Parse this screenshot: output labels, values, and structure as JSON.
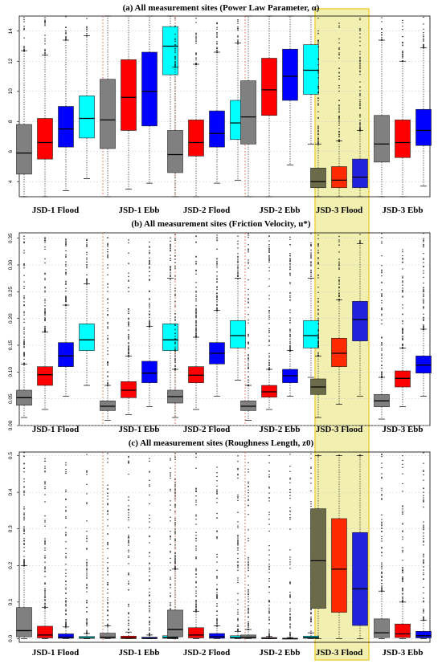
{
  "chart_data": [
    {
      "type": "box",
      "title": "(a) All measurement sites (Power Law Parameter, α)",
      "ylim": [
        3,
        15
      ],
      "yticks": [
        "4",
        "6",
        "8",
        "10",
        "12",
        "14"
      ],
      "grid": true,
      "highlight_group": "JSD-3 Flood",
      "groups": [
        {
          "label": "JSD-1 Flood",
          "boxes": [
            {
              "color": "#808080",
              "whisker_low": 3.0,
              "q1": 4.5,
              "median": 5.9,
              "q3": 7.8,
              "whisker_high": 12.7
            },
            {
              "color": "#ff0000",
              "whisker_low": 3.0,
              "q1": 5.5,
              "median": 6.6,
              "q3": 8.2,
              "whisker_high": 12.4
            },
            {
              "color": "#0000ff",
              "whisker_low": 3.4,
              "q1": 6.3,
              "median": 7.5,
              "q3": 9.0,
              "whisker_high": 13.4
            },
            {
              "color": "#00ffff",
              "whisker_low": 4.2,
              "q1": 6.9,
              "median": 8.2,
              "q3": 9.7,
              "whisker_high": 13.7
            }
          ]
        },
        {
          "label": "JSD-1 Ebb",
          "boxes": [
            {
              "color": "#808080",
              "whisker_low": 3.0,
              "q1": 6.2,
              "median": 8.1,
              "q3": 10.8,
              "whisker_high": 15.0
            },
            {
              "color": "#ff0000",
              "whisker_low": 3.5,
              "q1": 7.4,
              "median": 9.6,
              "q3": 12.1,
              "whisker_high": 15.0
            },
            {
              "color": "#0000ff",
              "whisker_low": 3.9,
              "q1": 7.7,
              "median": 10.0,
              "q3": 12.6,
              "whisker_high": 15.0
            },
            {
              "color": "#00ffff",
              "whisker_low": 5.7,
              "q1": 11.1,
              "median": 13.0,
              "q3": 14.3,
              "whisker_high": 15.0
            }
          ]
        },
        {
          "label": "JSD-2 Flood",
          "boxes": [
            {
              "color": "#808080",
              "whisker_low": 3.0,
              "q1": 4.6,
              "median": 5.8,
              "q3": 7.4,
              "whisker_high": 11.6
            },
            {
              "color": "#ff0000",
              "whisker_low": 3.0,
              "q1": 5.7,
              "median": 6.6,
              "q3": 8.1,
              "whisker_high": 11.8
            },
            {
              "color": "#0000ff",
              "whisker_low": 3.9,
              "q1": 6.3,
              "median": 7.2,
              "q3": 8.7,
              "whisker_high": 12.6
            },
            {
              "color": "#00ffff",
              "whisker_low": 4.1,
              "q1": 6.8,
              "median": 7.9,
              "q3": 9.4,
              "whisker_high": 13.2
            }
          ]
        },
        {
          "label": "JSD-2 Ebb",
          "boxes": [
            {
              "color": "#808080",
              "whisker_low": 3.0,
              "q1": 6.5,
              "median": 8.3,
              "q3": 10.7,
              "whisker_high": 15.0
            },
            {
              "color": "#ff0000",
              "whisker_low": 3.0,
              "q1": 8.4,
              "median": 10.1,
              "q3": 12.2,
              "whisker_high": 15.0
            },
            {
              "color": "#0000ff",
              "whisker_low": 5.1,
              "q1": 9.4,
              "median": 11.0,
              "q3": 12.8,
              "whisker_high": 15.0
            },
            {
              "color": "#00ffff",
              "whisker_low": 6.5,
              "q1": 9.8,
              "median": 11.4,
              "q3": 13.1,
              "whisker_high": 15.0
            }
          ]
        },
        {
          "label": "JSD-3 Flood",
          "boxes": [
            {
              "color": "#6b6b4a",
              "whisker_low": 3.0,
              "q1": 3.6,
              "median": 4.0,
              "q3": 4.9,
              "whisker_high": 6.5
            },
            {
              "color": "#ff2a00",
              "whisker_low": 3.0,
              "q1": 3.6,
              "median": 4.1,
              "q3": 5.0,
              "whisker_high": 6.7
            },
            {
              "color": "#2222dd",
              "whisker_low": 3.0,
              "q1": 3.6,
              "median": 4.3,
              "q3": 5.5,
              "whisker_high": 7.4
            }
          ]
        },
        {
          "label": "JSD-3 Ebb",
          "boxes": [
            {
              "color": "#808080",
              "whisker_low": 3.0,
              "q1": 5.3,
              "median": 6.5,
              "q3": 8.4,
              "whisker_high": 13.4
            },
            {
              "color": "#ff0000",
              "whisker_low": 3.0,
              "q1": 5.6,
              "median": 6.6,
              "q3": 8.1,
              "whisker_high": 12.0
            },
            {
              "color": "#0000ff",
              "whisker_low": 3.7,
              "q1": 6.4,
              "median": 7.4,
              "q3": 8.8,
              "whisker_high": 12.9
            }
          ]
        }
      ]
    },
    {
      "type": "box",
      "title": "(b) All measurement sites (Friction Velocity, u*)",
      "ylim": [
        0,
        0.36
      ],
      "yticks": [
        "0.00",
        "0.05",
        "0.10",
        "0.15",
        "0.20",
        "0.25",
        "0.30",
        "0.35"
      ],
      "grid": true,
      "highlight_group": "JSD-3 Flood",
      "groups": [
        {
          "label": "JSD-1 Flood",
          "boxes": [
            {
              "color": "#808080",
              "whisker_low": 0.015,
              "q1": 0.038,
              "median": 0.052,
              "q3": 0.066,
              "whisker_high": 0.115
            },
            {
              "color": "#ff0000",
              "whisker_low": 0.03,
              "q1": 0.075,
              "median": 0.095,
              "q3": 0.11,
              "whisker_high": 0.175
            },
            {
              "color": "#0000ff",
              "whisker_low": 0.055,
              "q1": 0.11,
              "median": 0.13,
              "q3": 0.155,
              "whisker_high": 0.225
            },
            {
              "color": "#00ffff",
              "whisker_low": 0.075,
              "q1": 0.14,
              "median": 0.16,
              "q3": 0.19,
              "whisker_high": 0.265
            }
          ]
        },
        {
          "label": "JSD-1 Ebb",
          "boxes": [
            {
              "color": "#808080",
              "whisker_low": 0.01,
              "q1": 0.028,
              "median": 0.036,
              "q3": 0.046,
              "whisker_high": 0.075
            },
            {
              "color": "#ff0000",
              "whisker_low": 0.02,
              "q1": 0.052,
              "median": 0.066,
              "q3": 0.082,
              "whisker_high": 0.13
            },
            {
              "color": "#0000ff",
              "whisker_low": 0.035,
              "q1": 0.08,
              "median": 0.098,
              "q3": 0.12,
              "whisker_high": 0.185
            },
            {
              "color": "#00ffff",
              "whisker_low": 0.06,
              "q1": 0.14,
              "median": 0.16,
              "q3": 0.19,
              "whisker_high": 0.275
            }
          ]
        },
        {
          "label": "JSD-2 Flood",
          "boxes": [
            {
              "color": "#808080",
              "whisker_low": 0.015,
              "q1": 0.042,
              "median": 0.054,
              "q3": 0.066,
              "whisker_high": 0.105
            },
            {
              "color": "#ff0000",
              "whisker_low": 0.03,
              "q1": 0.08,
              "median": 0.094,
              "q3": 0.11,
              "whisker_high": 0.165
            },
            {
              "color": "#0000ff",
              "whisker_low": 0.055,
              "q1": 0.115,
              "median": 0.135,
              "q3": 0.155,
              "whisker_high": 0.215
            },
            {
              "color": "#00ffff",
              "whisker_low": 0.085,
              "q1": 0.145,
              "median": 0.168,
              "q3": 0.196,
              "whisker_high": 0.275
            }
          ]
        },
        {
          "label": "JSD-2 Ebb",
          "boxes": [
            {
              "color": "#808080",
              "whisker_low": 0.01,
              "q1": 0.028,
              "median": 0.036,
              "q3": 0.046,
              "whisker_high": 0.075
            },
            {
              "color": "#ff0000",
              "whisker_low": 0.03,
              "q1": 0.053,
              "median": 0.063,
              "q3": 0.075,
              "whisker_high": 0.105
            },
            {
              "color": "#0000ff",
              "whisker_low": 0.055,
              "q1": 0.08,
              "median": 0.093,
              "q3": 0.105,
              "whisker_high": 0.14
            },
            {
              "color": "#00ffff",
              "whisker_low": 0.09,
              "q1": 0.145,
              "median": 0.168,
              "q3": 0.196,
              "whisker_high": 0.275
            }
          ]
        },
        {
          "label": "JSD-3 Flood",
          "boxes": [
            {
              "color": "#6b6b4a",
              "whisker_low": 0.015,
              "q1": 0.058,
              "median": 0.072,
              "q3": 0.087,
              "whisker_high": 0.13
            },
            {
              "color": "#ff2a00",
              "whisker_low": 0.04,
              "q1": 0.11,
              "median": 0.135,
              "q3": 0.163,
              "whisker_high": 0.235
            },
            {
              "color": "#2222dd",
              "whisker_low": 0.055,
              "q1": 0.158,
              "median": 0.198,
              "q3": 0.232,
              "whisker_high": 0.34
            }
          ]
        },
        {
          "label": "JSD-3 Ebb",
          "boxes": [
            {
              "color": "#808080",
              "whisker_low": 0.012,
              "q1": 0.035,
              "median": 0.046,
              "q3": 0.058,
              "whisker_high": 0.09
            },
            {
              "color": "#ff0000",
              "whisker_low": 0.035,
              "q1": 0.072,
              "median": 0.088,
              "q3": 0.102,
              "whisker_high": 0.145
            },
            {
              "color": "#0000ff",
              "whisker_low": 0.055,
              "q1": 0.098,
              "median": 0.113,
              "q3": 0.13,
              "whisker_high": 0.18
            }
          ]
        }
      ]
    },
    {
      "type": "box",
      "title": "(c) All measurement sites (Roughness Length, z0)",
      "ylim": [
        -0.01,
        0.51
      ],
      "yticks": [
        "0.0",
        "0.1",
        "0.2",
        "0.3",
        "0.4",
        "0.5"
      ],
      "grid": true,
      "highlight_group": "JSD-3 Flood",
      "groups": [
        {
          "label": "JSD-1 Flood",
          "boxes": [
            {
              "color": "#808080",
              "whisker_low": 0.0,
              "q1": 0.005,
              "median": 0.022,
              "q3": 0.085,
              "whisker_high": 0.2
            },
            {
              "color": "#ff0000",
              "whisker_low": 0.0,
              "q1": 0.002,
              "median": 0.01,
              "q3": 0.034,
              "whisker_high": 0.085
            },
            {
              "color": "#0000ff",
              "whisker_low": 0.0,
              "q1": 0.001,
              "median": 0.004,
              "q3": 0.013,
              "whisker_high": 0.032
            },
            {
              "color": "#00ffff",
              "whisker_low": 0.0,
              "q1": 0.001,
              "median": 0.002,
              "q3": 0.006,
              "whisker_high": 0.014
            }
          ]
        },
        {
          "label": "JSD-1 Ebb",
          "boxes": [
            {
              "color": "#808080",
              "whisker_low": 0.0,
              "q1": 0.001,
              "median": 0.004,
              "q3": 0.015,
              "whisker_high": 0.035
            },
            {
              "color": "#ff0000",
              "whisker_low": 0.0,
              "q1": 0.0,
              "median": 0.002,
              "q3": 0.007,
              "whisker_high": 0.018
            },
            {
              "color": "#0000ff",
              "whisker_low": 0.0,
              "q1": 0.0,
              "median": 0.001,
              "q3": 0.004,
              "whisker_high": 0.01
            },
            {
              "color": "#00ffff",
              "whisker_low": 0.0,
              "q1": 0.001,
              "median": 0.003,
              "q3": 0.008,
              "whisker_high": 0.018
            }
          ]
        },
        {
          "label": "JSD-2 Flood",
          "boxes": [
            {
              "color": "#808080",
              "whisker_low": 0.0,
              "q1": 0.005,
              "median": 0.025,
              "q3": 0.078,
              "whisker_high": 0.19
            },
            {
              "color": "#ff0000",
              "whisker_low": 0.0,
              "q1": 0.002,
              "median": 0.01,
              "q3": 0.03,
              "whisker_high": 0.075
            },
            {
              "color": "#0000ff",
              "whisker_low": 0.0,
              "q1": 0.001,
              "median": 0.005,
              "q3": 0.014,
              "whisker_high": 0.035
            },
            {
              "color": "#00ffff",
              "whisker_low": 0.0,
              "q1": 0.001,
              "median": 0.003,
              "q3": 0.008,
              "whisker_high": 0.02
            }
          ]
        },
        {
          "label": "JSD-2 Ebb",
          "boxes": [
            {
              "color": "#808080",
              "whisker_low": 0.0,
              "q1": 0.001,
              "median": 0.004,
              "q3": 0.01,
              "whisker_high": 0.025
            },
            {
              "color": "#ff0000",
              "whisker_low": 0.0,
              "q1": 0.0,
              "median": 0.001,
              "q3": 0.003,
              "whisker_high": 0.006
            },
            {
              "color": "#0000ff",
              "whisker_low": 0.0,
              "q1": 0.0,
              "median": 0.0,
              "q3": 0.001,
              "whisker_high": 0.003
            },
            {
              "color": "#00ffff",
              "whisker_low": 0.0,
              "q1": 0.001,
              "median": 0.003,
              "q3": 0.007,
              "whisker_high": 0.016
            }
          ]
        },
        {
          "label": "JSD-3 Flood",
          "boxes": [
            {
              "color": "#6b6b4a",
              "whisker_low": 0.0,
              "q1": 0.083,
              "median": 0.213,
              "q3": 0.355,
              "whisker_high": 0.5
            },
            {
              "color": "#ff2a00",
              "whisker_low": 0.0,
              "q1": 0.072,
              "median": 0.19,
              "q3": 0.328,
              "whisker_high": 0.5
            },
            {
              "color": "#2222dd",
              "whisker_low": 0.0,
              "q1": 0.036,
              "median": 0.136,
              "q3": 0.29,
              "whisker_high": 0.5
            }
          ]
        },
        {
          "label": "JSD-3 Ebb",
          "boxes": [
            {
              "color": "#808080",
              "whisker_low": 0.0,
              "q1": 0.003,
              "median": 0.016,
              "q3": 0.054,
              "whisker_high": 0.13
            },
            {
              "color": "#ff0000",
              "whisker_low": 0.0,
              "q1": 0.003,
              "median": 0.013,
              "q3": 0.04,
              "whisker_high": 0.1
            },
            {
              "color": "#0000ff",
              "whisker_low": 0.0,
              "q1": 0.002,
              "median": 0.008,
              "q3": 0.02,
              "whisker_high": 0.05
            }
          ]
        }
      ]
    }
  ],
  "colors": {
    "highlight_fill": "#f2f0b0",
    "highlight_border": "#f0d040",
    "separator": "#e06040",
    "grid": "#cccccc"
  }
}
